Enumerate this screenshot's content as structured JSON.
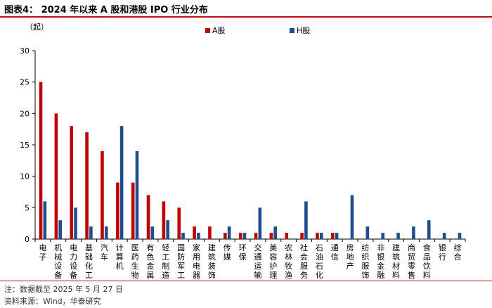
{
  "header": {
    "title": "图表4：  2024 年以来 A 股和港股 IPO 行业分布"
  },
  "footer": {
    "note": "注：数据截至 2025 年 5 月 27 日",
    "source": "资料来源：Wind，华泰研究"
  },
  "colors": {
    "a_share": "#c00000",
    "h_share": "#1f4e8c",
    "axis": "#000000",
    "rule": "#b5121b"
  },
  "chart_data": {
    "type": "bar",
    "unit_label": "（起）",
    "ylim": [
      0,
      30
    ],
    "yticks": [
      0,
      5,
      10,
      15,
      20,
      25,
      30
    ],
    "grid": false,
    "legend_position": "top-right",
    "categories": [
      "电子",
      "机械设备",
      "电力设备",
      "基础化工",
      "汽车",
      "计算机",
      "医药生物",
      "有色金属",
      "轻工制造",
      "国防军工",
      "家用电器",
      "建筑装饰",
      "传媒",
      "环保",
      "交通运输",
      "美容护理",
      "农林牧渔",
      "社会服务",
      "石油石化",
      "通信",
      "房地产",
      "纺织服饰",
      "非银金融",
      "建筑材料",
      "商贸零售",
      "食品饮料",
      "银行",
      "综合"
    ],
    "series": [
      {
        "name": "A股",
        "values": [
          25,
          20,
          18,
          17,
          14,
          9,
          9,
          7,
          6,
          5,
          2,
          2,
          1,
          1,
          1,
          1,
          1,
          1,
          1,
          1,
          0,
          0,
          0,
          0,
          0,
          0,
          0,
          0
        ]
      },
      {
        "name": "H股",
        "values": [
          6,
          3,
          5,
          2,
          2,
          18,
          14,
          2,
          3,
          1,
          1,
          0,
          2,
          1,
          5,
          2,
          0,
          6,
          1,
          1,
          7,
          2,
          1,
          1,
          2,
          3,
          1,
          1
        ]
      }
    ]
  }
}
